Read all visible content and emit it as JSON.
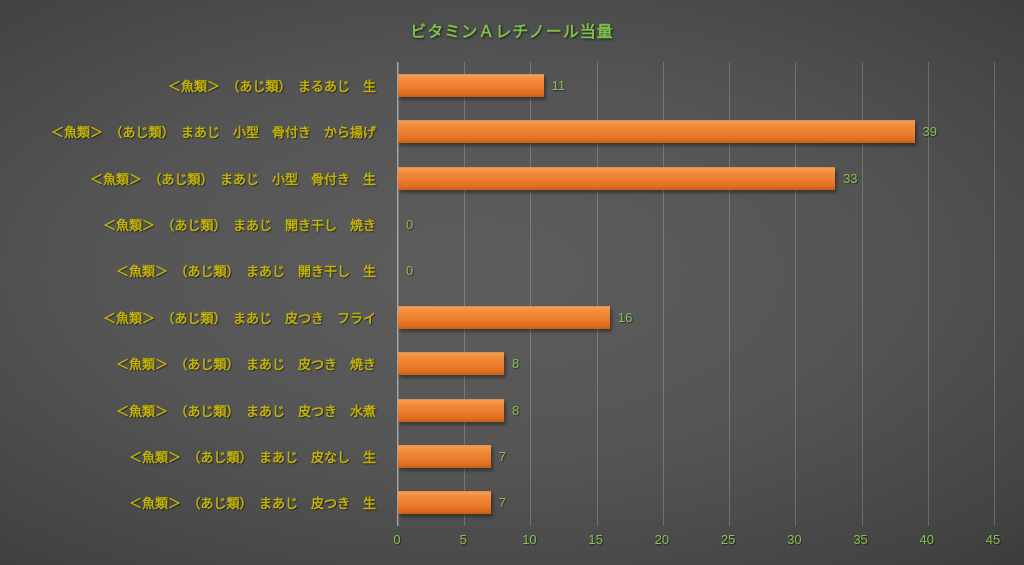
{
  "title": "ビタミンＡレチノール当量",
  "colors": {
    "background_center": "#5d5d5d",
    "background_edge": "#222222",
    "bar_orange": "#ed7d31",
    "title_green": "#7ebf48",
    "value_green": "#89bf4f",
    "category_yellow": "#c2b205",
    "gridline": "rgba(255,255,255,0.20)"
  },
  "chart_data": {
    "type": "bar",
    "orientation": "horizontal",
    "title": "ビタミンＡレチノール当量",
    "categories": [
      "＜魚類＞　（あじ類）　まるあじ　生",
      "＜魚類＞　（あじ類）　まあじ　小型　骨付き　から揚げ",
      "＜魚類＞　（あじ類）　まあじ　小型　骨付き　生",
      "＜魚類＞　（あじ類）　まあじ　開き干し　焼き",
      "＜魚類＞　（あじ類）　まあじ　開き干し　生",
      "＜魚類＞　（あじ類）　まあじ　皮つき　フライ",
      "＜魚類＞　（あじ類）　まあじ　皮つき　焼き",
      "＜魚類＞　（あじ類）　まあじ　皮つき　水煮",
      "＜魚類＞　（あじ類）　まあじ　皮なし　生",
      "＜魚類＞　（あじ類）　まあじ　皮つき　生"
    ],
    "values": [
      11,
      39,
      33,
      0,
      0,
      16,
      8,
      8,
      7,
      7
    ],
    "xlabel": "",
    "ylabel": "",
    "xlim": [
      0,
      45
    ],
    "x_ticks": [
      0,
      5,
      10,
      15,
      20,
      25,
      30,
      35,
      40,
      45
    ],
    "grid": "vertical",
    "legend": "none",
    "data_labels": true
  }
}
